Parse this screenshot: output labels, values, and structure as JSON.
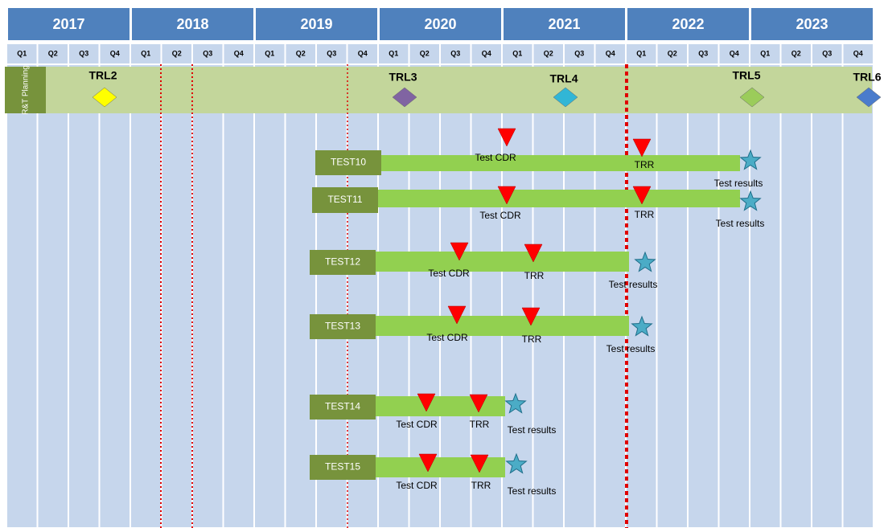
{
  "header": {
    "years": [
      {
        "label": "2017",
        "quarters": [
          "Q1",
          "Q2",
          "Q3",
          "Q4"
        ]
      },
      {
        "label": "2018",
        "quarters": [
          "Q1",
          "Q2",
          "Q3",
          "Q4"
        ]
      },
      {
        "label": "2019",
        "quarters": [
          "Q1",
          "Q2",
          "Q3",
          "Q4"
        ]
      },
      {
        "label": "2020",
        "quarters": [
          "Q1",
          "Q2",
          "Q3",
          "Q4"
        ]
      },
      {
        "label": "2021",
        "quarters": [
          "Q1",
          "Q2",
          "Q3",
          "Q4"
        ]
      },
      {
        "label": "2022",
        "quarters": [
          "Q1",
          "Q2",
          "Q3",
          "Q4"
        ]
      },
      {
        "label": "2023",
        "quarters": [
          "Q1",
          "Q2",
          "Q3",
          "Q4"
        ]
      }
    ]
  },
  "planning": {
    "label": "R&T Planning",
    "milestones": [
      "TRL2",
      "TRL3",
      "TRL4",
      "TRL5",
      "TRL6"
    ]
  },
  "tests": [
    {
      "name": "TEST10",
      "milestones": [
        "Test CDR",
        "TRR",
        "Test results"
      ]
    },
    {
      "name": "TEST11",
      "milestones": [
        "Test CDR",
        "TRR",
        "Test results"
      ]
    },
    {
      "name": "TEST12",
      "milestones": [
        "Test CDR",
        "TRR",
        "Test results"
      ]
    },
    {
      "name": "TEST13",
      "milestones": [
        "Test CDR",
        "TRR",
        "Test results"
      ]
    },
    {
      "name": "TEST14",
      "milestones": [
        "Test CDR",
        "TRR",
        "Test results"
      ]
    },
    {
      "name": "TEST15",
      "milestones": [
        "Test CDR",
        "TRR",
        "Test results"
      ]
    }
  ]
}
